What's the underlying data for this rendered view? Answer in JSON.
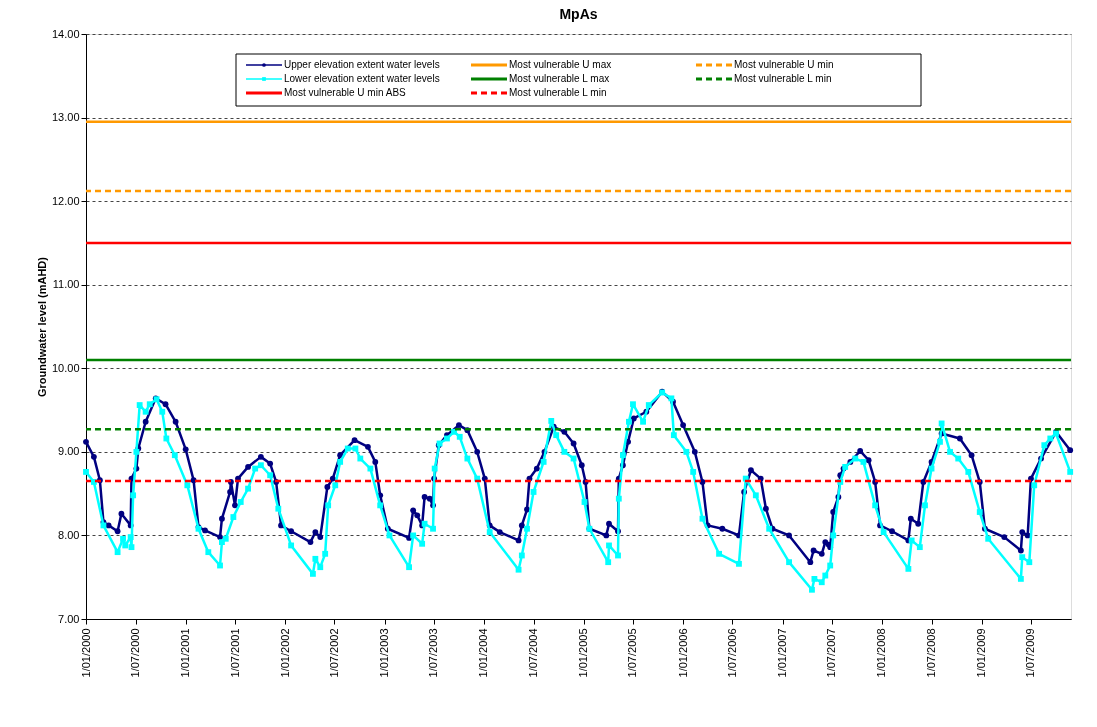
{
  "chart_data": {
    "type": "line",
    "title": "MpAs",
    "ylabel": "Groundwater level (mAHD)",
    "xlim": [
      "2000-01-01",
      "2009-11-25"
    ],
    "xticks": [
      {
        "value": "2000-01-01",
        "label": "1/01/2000"
      },
      {
        "value": "2000-07-01",
        "label": "1/07/2000"
      },
      {
        "value": "2001-01-01",
        "label": "1/01/2001"
      },
      {
        "value": "2001-07-01",
        "label": "1/07/2001"
      },
      {
        "value": "2002-01-01",
        "label": "1/01/2002"
      },
      {
        "value": "2002-07-01",
        "label": "1/07/2002"
      },
      {
        "value": "2003-01-01",
        "label": "1/01/2003"
      },
      {
        "value": "2003-07-01",
        "label": "1/07/2003"
      },
      {
        "value": "2004-01-01",
        "label": "1/01/2004"
      },
      {
        "value": "2004-07-01",
        "label": "1/07/2004"
      },
      {
        "value": "2005-01-01",
        "label": "1/01/2005"
      },
      {
        "value": "2005-07-01",
        "label": "1/07/2005"
      },
      {
        "value": "2006-01-01",
        "label": "1/01/2006"
      },
      {
        "value": "2006-07-01",
        "label": "1/07/2006"
      },
      {
        "value": "2007-01-01",
        "label": "1/01/2007"
      },
      {
        "value": "2007-07-01",
        "label": "1/07/2007"
      },
      {
        "value": "2008-01-01",
        "label": "1/01/2008"
      },
      {
        "value": "2008-07-01",
        "label": "1/07/2008"
      },
      {
        "value": "2009-01-01",
        "label": "1/01/2009"
      },
      {
        "value": "2009-07-01",
        "label": "1/07/2009"
      }
    ],
    "ylim": [
      7,
      14
    ],
    "yticks": [
      {
        "value": 7,
        "label": "7.00"
      },
      {
        "value": 8,
        "label": "8.00"
      },
      {
        "value": 9,
        "label": "9.00"
      },
      {
        "value": 10,
        "label": "10.00"
      },
      {
        "value": 11,
        "label": "11.00"
      },
      {
        "value": 12,
        "label": "12.00"
      },
      {
        "value": 13,
        "label": "13.00"
      },
      {
        "value": 14,
        "label": "14.00"
      }
    ],
    "grid": "y",
    "legend": "top",
    "line_style": "solid",
    "series": [
      {
        "name": "Upper elevation extent water levels",
        "color": "#000080",
        "marker": "circle",
        "x": [
          "2000-01-01",
          "2000-01-30",
          "2000-02-21",
          "2000-03-05",
          "2000-03-24",
          "2000-04-26",
          "2000-05-10",
          "2000-06-13",
          "2000-06-16",
          "2000-07-04",
          "2000-07-11",
          "2000-08-07",
          "2000-09-13",
          "2000-10-19",
          "2000-11-25",
          "2001-01-01",
          "2001-01-30",
          "2001-02-17",
          "2001-03-13",
          "2001-05-07",
          "2001-05-14",
          "2001-06-13",
          "2001-06-16",
          "2001-07-01",
          "2001-07-12",
          "2001-08-18",
          "2001-10-04",
          "2001-11-07",
          "2001-11-29",
          "2001-12-17",
          "2002-01-23",
          "2002-04-04",
          "2002-04-22",
          "2002-05-10",
          "2002-06-05",
          "2002-06-25",
          "2002-07-22",
          "2002-09-13",
          "2002-11-01",
          "2002-11-28",
          "2002-12-16",
          "2003-01-13",
          "2003-04-01",
          "2003-04-16",
          "2003-05-01",
          "2003-05-19",
          "2003-05-28",
          "2003-06-16",
          "2003-06-28",
          "2003-07-02",
          "2003-07-19",
          "2003-08-18",
          "2003-10-01",
          "2003-11-01",
          "2003-12-07",
          "2004-01-04",
          "2004-01-22",
          "2004-02-28",
          "2004-05-07",
          "2004-05-19",
          "2004-06-07",
          "2004-06-16",
          "2004-07-13",
          "2004-08-10",
          "2004-09-13",
          "2004-10-22",
          "2004-11-25",
          "2004-12-25",
          "2005-01-08",
          "2005-01-22",
          "2005-03-25",
          "2005-04-04",
          "2005-05-07",
          "2005-05-10",
          "2005-05-25",
          "2005-06-13",
          "2005-07-04",
          "2005-08-19",
          "2005-10-16",
          "2005-11-25",
          "2006-01-01",
          "2006-02-13",
          "2006-03-13",
          "2006-04-01",
          "2006-05-25",
          "2006-07-25",
          "2006-08-13",
          "2006-09-07",
          "2006-10-13",
          "2006-11-01",
          "2006-11-25",
          "2007-01-25",
          "2007-04-13",
          "2007-04-25",
          "2007-05-25",
          "2007-06-07",
          "2007-06-19",
          "2007-06-25",
          "2007-07-06",
          "2007-07-25",
          "2007-08-01",
          "2007-08-13",
          "2007-09-07",
          "2007-10-13",
          "2007-11-13",
          "2007-12-07",
          "2007-12-25",
          "2008-02-07",
          "2008-04-07",
          "2008-04-16",
          "2008-05-13",
          "2008-06-01",
          "2008-07-01",
          "2008-08-07",
          "2008-10-13",
          "2008-11-25",
          "2008-12-25",
          "2009-01-13",
          "2009-03-25",
          "2009-05-25",
          "2009-05-30",
          "2009-06-19",
          "2009-07-01",
          "2009-08-07",
          "2009-10-01",
          "2009-11-22"
        ],
        "values": [
          9.12,
          8.94,
          8.66,
          8.16,
          8.12,
          8.05,
          8.26,
          8.12,
          8.68,
          8.8,
          9.04,
          9.36,
          9.64,
          9.57,
          9.36,
          9.03,
          8.66,
          8.1,
          8.06,
          7.98,
          8.2,
          8.52,
          8.64,
          8.36,
          8.68,
          8.82,
          8.94,
          8.86,
          8.64,
          8.12,
          8.05,
          7.92,
          8.04,
          7.98,
          8.58,
          8.68,
          8.96,
          9.14,
          9.06,
          8.88,
          8.48,
          8.08,
          7.97,
          8.3,
          8.24,
          8.12,
          8.46,
          8.44,
          8.36,
          8.68,
          9.08,
          9.2,
          9.32,
          9.26,
          9.0,
          8.68,
          8.12,
          8.04,
          7.94,
          8.12,
          8.31,
          8.68,
          8.8,
          9.0,
          9.3,
          9.24,
          9.1,
          8.84,
          8.64,
          8.08,
          8.0,
          8.14,
          8.05,
          8.68,
          8.84,
          9.12,
          9.4,
          9.48,
          9.72,
          9.6,
          9.32,
          9.0,
          8.64,
          8.12,
          8.08,
          8.0,
          8.52,
          8.78,
          8.68,
          8.32,
          8.08,
          8.0,
          7.68,
          7.82,
          7.78,
          7.92,
          7.89,
          7.86,
          8.28,
          8.46,
          8.72,
          8.8,
          8.88,
          9.01,
          8.9,
          8.64,
          8.12,
          8.05,
          7.94,
          8.2,
          8.14,
          8.64,
          8.88,
          9.22,
          9.16,
          8.96,
          8.64,
          8.08,
          7.98,
          7.82,
          8.04,
          8.0,
          8.68,
          8.92,
          9.24,
          9.02
        ]
      },
      {
        "name": "Lower elevation extent water levels",
        "color": "#00ffff",
        "marker": "square",
        "x": [
          "2000-01-01",
          "2000-01-30",
          "2000-03-05",
          "2000-04-26",
          "2000-05-16",
          "2000-05-24",
          "2000-06-13",
          "2000-06-16",
          "2000-06-22",
          "2000-07-04",
          "2000-07-16",
          "2000-08-07",
          "2000-08-22",
          "2000-09-16",
          "2000-10-07",
          "2000-10-22",
          "2000-11-22",
          "2001-01-07",
          "2001-02-17",
          "2001-03-25",
          "2001-05-07",
          "2001-05-14",
          "2001-05-28",
          "2001-06-25",
          "2001-07-22",
          "2001-08-18",
          "2001-09-13",
          "2001-10-04",
          "2001-11-07",
          "2001-12-07",
          "2002-01-23",
          "2002-04-13",
          "2002-04-22",
          "2002-05-10",
          "2002-05-28",
          "2002-06-08",
          "2002-07-04",
          "2002-07-22",
          "2002-08-19",
          "2002-09-16",
          "2002-10-04",
          "2002-11-10",
          "2002-12-16",
          "2003-01-19",
          "2003-04-01",
          "2003-04-16",
          "2003-05-19",
          "2003-05-28",
          "2003-06-28",
          "2003-07-04",
          "2003-07-22",
          "2003-08-18",
          "2003-09-13",
          "2003-10-04",
          "2003-11-01",
          "2003-12-07",
          "2004-01-22",
          "2004-05-07",
          "2004-05-19",
          "2004-06-07",
          "2004-07-01",
          "2004-08-07",
          "2004-09-04",
          "2004-09-22",
          "2004-10-22",
          "2004-11-25",
          "2005-01-04",
          "2005-01-22",
          "2005-04-01",
          "2005-04-04",
          "2005-05-07",
          "2005-05-10",
          "2005-05-25",
          "2005-06-16",
          "2005-07-01",
          "2005-08-07",
          "2005-08-28",
          "2005-10-16",
          "2005-11-19",
          "2005-11-28",
          "2006-01-13",
          "2006-02-07",
          "2006-03-13",
          "2006-05-13",
          "2006-07-25",
          "2006-08-19",
          "2006-09-25",
          "2006-11-13",
          "2007-01-25",
          "2007-04-19",
          "2007-04-28",
          "2007-05-25",
          "2007-06-07",
          "2007-06-25",
          "2007-07-06",
          "2007-08-01",
          "2007-08-19",
          "2007-09-25",
          "2007-10-25",
          "2007-12-07",
          "2008-01-07",
          "2008-04-07",
          "2008-04-19",
          "2008-05-19",
          "2008-06-07",
          "2008-07-01",
          "2008-08-01",
          "2008-08-07",
          "2008-09-07",
          "2008-10-07",
          "2008-11-13",
          "2008-12-25",
          "2009-01-25",
          "2009-05-25",
          "2009-05-30",
          "2009-06-25",
          "2009-07-13",
          "2009-08-19",
          "2009-09-10",
          "2009-10-01",
          "2009-11-22"
        ],
        "values": [
          8.76,
          8.64,
          8.12,
          7.8,
          7.96,
          7.88,
          7.98,
          7.86,
          8.48,
          9.0,
          9.56,
          9.48,
          9.57,
          9.63,
          9.48,
          9.16,
          8.96,
          8.6,
          8.08,
          7.8,
          7.64,
          7.92,
          7.96,
          8.22,
          8.4,
          8.56,
          8.8,
          8.84,
          8.72,
          8.32,
          7.88,
          7.54,
          7.72,
          7.62,
          7.78,
          8.36,
          8.6,
          8.88,
          9.04,
          9.04,
          8.92,
          8.8,
          8.36,
          8.0,
          7.62,
          8.0,
          7.9,
          8.14,
          8.08,
          8.8,
          9.1,
          9.16,
          9.24,
          9.18,
          8.92,
          8.68,
          8.04,
          7.59,
          7.76,
          8.08,
          8.52,
          8.88,
          9.37,
          9.2,
          9.0,
          8.92,
          8.4,
          8.08,
          7.68,
          7.88,
          7.76,
          8.44,
          8.96,
          9.36,
          9.57,
          9.36,
          9.56,
          9.71,
          9.64,
          9.2,
          9.0,
          8.76,
          8.2,
          7.78,
          7.66,
          8.68,
          8.48,
          8.08,
          7.68,
          7.35,
          7.48,
          7.44,
          7.52,
          7.64,
          8.0,
          8.64,
          8.82,
          8.92,
          8.88,
          8.36,
          8.04,
          7.6,
          7.94,
          7.86,
          8.36,
          8.8,
          9.12,
          9.34,
          9.0,
          8.92,
          8.76,
          8.28,
          7.96,
          7.48,
          7.74,
          7.68,
          8.6,
          9.08,
          9.16,
          9.22,
          8.76
        ]
      }
    ],
    "ref_lines": [
      {
        "axis": "y",
        "value": 11.5,
        "label": "Most vulnerable U min ABS",
        "color": "#ff0000",
        "line_style": "solid"
      },
      {
        "axis": "y",
        "value": 12.95,
        "label": "Most vulnerable U max",
        "color": "#ff9900",
        "line_style": "solid"
      },
      {
        "axis": "y",
        "value": 10.1,
        "label": "Most vulnerable L max",
        "color": "#008000",
        "line_style": "solid"
      },
      {
        "axis": "y",
        "value": 8.65,
        "label": "Most vulnerable L min",
        "color": "#ff0000",
        "line_style": "dashed"
      },
      {
        "axis": "y",
        "value": 12.12,
        "label": "Most vulnerable U min",
        "color": "#ff9900",
        "line_style": "dashed"
      },
      {
        "axis": "y",
        "value": 9.27,
        "label": "Most vulnerable L min",
        "color": "#008000",
        "line_style": "dashed"
      }
    ]
  }
}
